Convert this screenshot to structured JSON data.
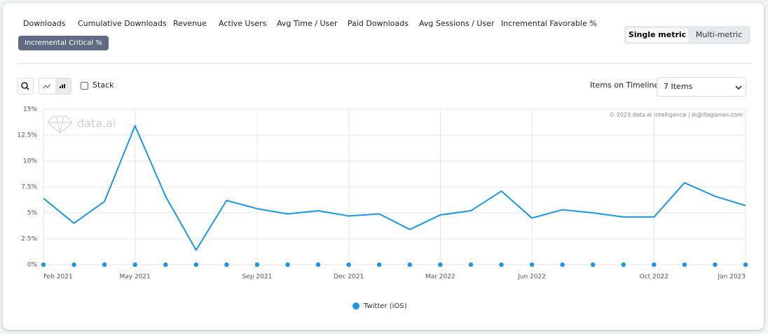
{
  "tabs": [
    "Downloads",
    "Cumulative Downloads",
    "Revenue",
    "Active Users",
    "Avg Time / User",
    "Paid Downloads",
    "Avg Sessions / User",
    "Incremental Favorable %",
    "Incremental Critical %"
  ],
  "mode_toggle": [
    "Single metric",
    "Multi-metric"
  ],
  "stack_label": "Stack",
  "items_label": "Items on Timeline:",
  "items_value": "7 Items",
  "chart_data": {
    "type": "line",
    "watermark": "data.ai",
    "copyright": "© 2023 data.ai Intelligence | jk@lilagames.com",
    "categories": [
      "Feb 2021",
      null,
      null,
      "May 2021",
      null,
      null,
      null,
      "Sep 2021",
      null,
      null,
      "Dec 2021",
      null,
      null,
      "Mar 2022",
      null,
      null,
      "Jun 2022",
      null,
      null,
      null,
      "Oct 2022",
      null,
      null,
      "Jan 2023"
    ],
    "series": [
      {
        "name": "Twitter (iOS)",
        "color": "#1a96e8",
        "values": [
          6.4,
          4.0,
          6.1,
          13.4,
          6.6,
          1.4,
          6.2,
          5.4,
          4.9,
          5.2,
          4.7,
          4.9,
          3.4,
          4.8,
          5.2,
          7.1,
          4.5,
          5.3,
          5.0,
          4.6,
          4.6,
          7.9,
          6.6,
          5.7
        ]
      }
    ],
    "ylim": [
      0,
      15
    ],
    "yticks": [
      {
        "value": 0,
        "label": "0%"
      },
      {
        "value": 2.5,
        "label": "2.5%"
      },
      {
        "value": 5,
        "label": "5%"
      },
      {
        "value": 7.5,
        "label": "7.5%"
      },
      {
        "value": 10,
        "label": "10%"
      },
      {
        "value": 12.5,
        "label": "12.5%"
      },
      {
        "value": 15,
        "label": "15%"
      }
    ],
    "grid": true
  }
}
